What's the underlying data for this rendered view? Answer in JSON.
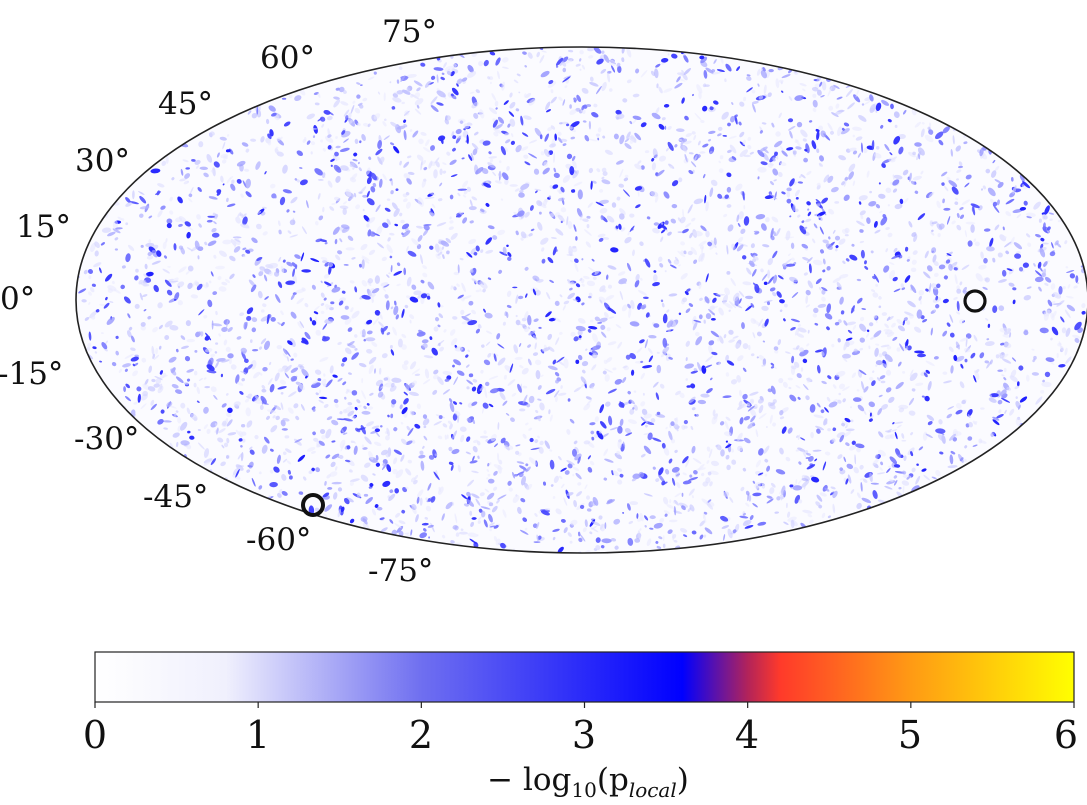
{
  "map": {
    "projection": "mollweide",
    "latitude_labels": [
      "75°",
      "60°",
      "45°",
      "30°",
      "15°",
      "0°",
      "-15°",
      "-30°",
      "-45°",
      "-60°",
      "-75°"
    ],
    "latitude_values": [
      75,
      60,
      45,
      30,
      15,
      0,
      -15,
      -30,
      -45,
      -60,
      -75
    ],
    "highlighted_regions": [
      {
        "name": "circle-east-equator",
        "lon": -160,
        "lat": 0
      },
      {
        "name": "circle-southwest",
        "lon": 95,
        "lat": -52
      }
    ],
    "outline_color": "#222222"
  },
  "colorbar": {
    "range": [
      0,
      6
    ],
    "tick_labels": [
      "0",
      "1",
      "2",
      "3",
      "4",
      "5",
      "6"
    ],
    "tick_values": [
      0,
      1,
      2,
      3,
      4,
      5,
      6
    ],
    "label_prefix": "− log",
    "label_sub": "10",
    "label_suffix": "(p",
    "label_sub2": "local",
    "label_end": ")",
    "colormap": [
      {
        "value": 0,
        "color": "#ffffff"
      },
      {
        "value": 0.8,
        "color": "#f0f0fd"
      },
      {
        "value": 2.0,
        "color": "#6f6ff0"
      },
      {
        "value": 3.6,
        "color": "#0000ff"
      },
      {
        "value": 4.0,
        "color": "#b2235a"
      },
      {
        "value": 4.2,
        "color": "#ff3a2a"
      },
      {
        "value": 5.0,
        "color": "#ff9a14"
      },
      {
        "value": 6.0,
        "color": "#ffff00"
      }
    ]
  }
}
